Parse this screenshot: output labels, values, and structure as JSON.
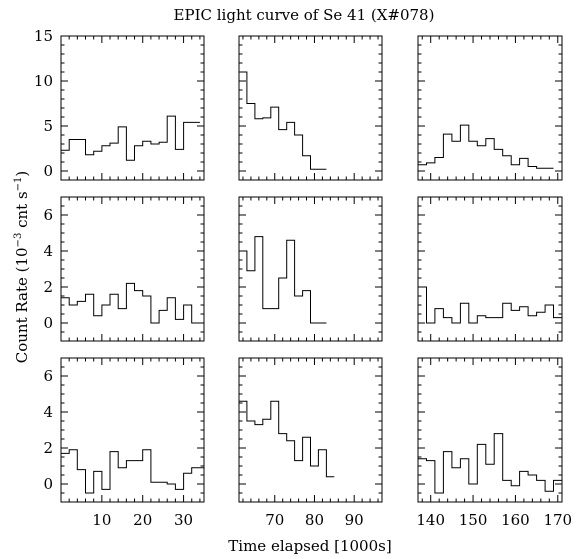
{
  "chart_data": {
    "type": "line",
    "title": "EPIC light curve of Se 41 (X#078)",
    "xlabel": "Time elapsed [1000s]",
    "ylabel_parts": {
      "main": "Count Rate (10",
      "exp1": "−3",
      "mid": " cnt s",
      "exp2": "−1",
      "end": ")"
    },
    "columns": [
      {
        "xlim": [
          0,
          35
        ],
        "ticks": [
          10,
          20,
          30
        ]
      },
      {
        "xlim": [
          61,
          97
        ],
        "ticks": [
          70,
          80,
          90
        ]
      },
      {
        "xlim": [
          137,
          171
        ],
        "ticks": [
          140,
          150,
          160,
          170
        ]
      }
    ],
    "rows": [
      {
        "ylim": [
          -1,
          15
        ],
        "ticks": [
          0,
          5,
          10,
          15
        ]
      },
      {
        "ylim": [
          -1,
          7
        ],
        "ticks": [
          0,
          2,
          4,
          6
        ]
      },
      {
        "ylim": [
          -1,
          7
        ],
        "ticks": [
          0,
          2,
          4,
          6
        ]
      }
    ],
    "series": [
      {
        "row": 0,
        "col": 0,
        "bin": 2,
        "x0": 0,
        "values": [
          2.3,
          3.5,
          3.5,
          1.8,
          2.2,
          2.8,
          3.1,
          4.9,
          1.2,
          2.8,
          3.3,
          3.0,
          3.2,
          6.1,
          2.4,
          5.4,
          5.4
        ]
      },
      {
        "row": 0,
        "col": 1,
        "bin": 2,
        "x0": 61,
        "values": [
          11.0,
          7.5,
          5.8,
          5.9,
          7.1,
          4.6,
          5.4,
          4.0,
          1.7,
          0.2,
          0.2
        ]
      },
      {
        "row": 0,
        "col": 2,
        "bin": 2,
        "x0": 137,
        "values": [
          0.7,
          0.9,
          1.5,
          4.1,
          3.3,
          5.1,
          3.3,
          2.8,
          3.6,
          2.4,
          1.7,
          0.7,
          1.4,
          0.5,
          0.3,
          0.3
        ]
      },
      {
        "row": 1,
        "col": 0,
        "bin": 2,
        "x0": 0,
        "values": [
          1.4,
          1.0,
          1.2,
          1.6,
          0.4,
          1.0,
          1.6,
          0.8,
          2.2,
          1.8,
          1.5,
          0.0,
          0.7,
          1.4,
          0.2,
          1.0,
          0.0,
          0.0
        ]
      },
      {
        "row": 1,
        "col": 1,
        "bin": 2,
        "x0": 61,
        "values": [
          4.0,
          2.9,
          4.8,
          0.8,
          0.8,
          2.5,
          4.6,
          1.5,
          1.8,
          0.0,
          0.0
        ]
      },
      {
        "row": 1,
        "col": 2,
        "bin": 2,
        "x0": 137,
        "values": [
          2.0,
          0.0,
          0.8,
          0.3,
          0.0,
          1.1,
          0.0,
          0.4,
          0.3,
          0.3,
          1.1,
          0.7,
          0.9,
          0.4,
          0.6,
          1.0,
          0.3
        ]
      },
      {
        "row": 2,
        "col": 0,
        "bin": 2,
        "x0": 0,
        "values": [
          1.7,
          1.9,
          0.8,
          -0.5,
          0.7,
          -0.3,
          1.8,
          0.9,
          1.3,
          1.3,
          1.9,
          0.1,
          0.1,
          0.0,
          -0.3,
          0.6,
          0.9,
          0.9
        ]
      },
      {
        "row": 2,
        "col": 1,
        "bin": 2,
        "x0": 61,
        "values": [
          4.6,
          3.5,
          3.3,
          3.6,
          4.6,
          2.8,
          2.4,
          1.3,
          2.6,
          1.0,
          1.9,
          0.4
        ]
      },
      {
        "row": 2,
        "col": 2,
        "bin": 2,
        "x0": 137,
        "values": [
          1.4,
          1.3,
          -0.5,
          1.8,
          0.9,
          1.4,
          0.0,
          2.2,
          1.1,
          2.8,
          0.2,
          -0.1,
          0.7,
          0.5,
          0.2,
          -0.4,
          0.2,
          0.9
        ]
      }
    ]
  }
}
